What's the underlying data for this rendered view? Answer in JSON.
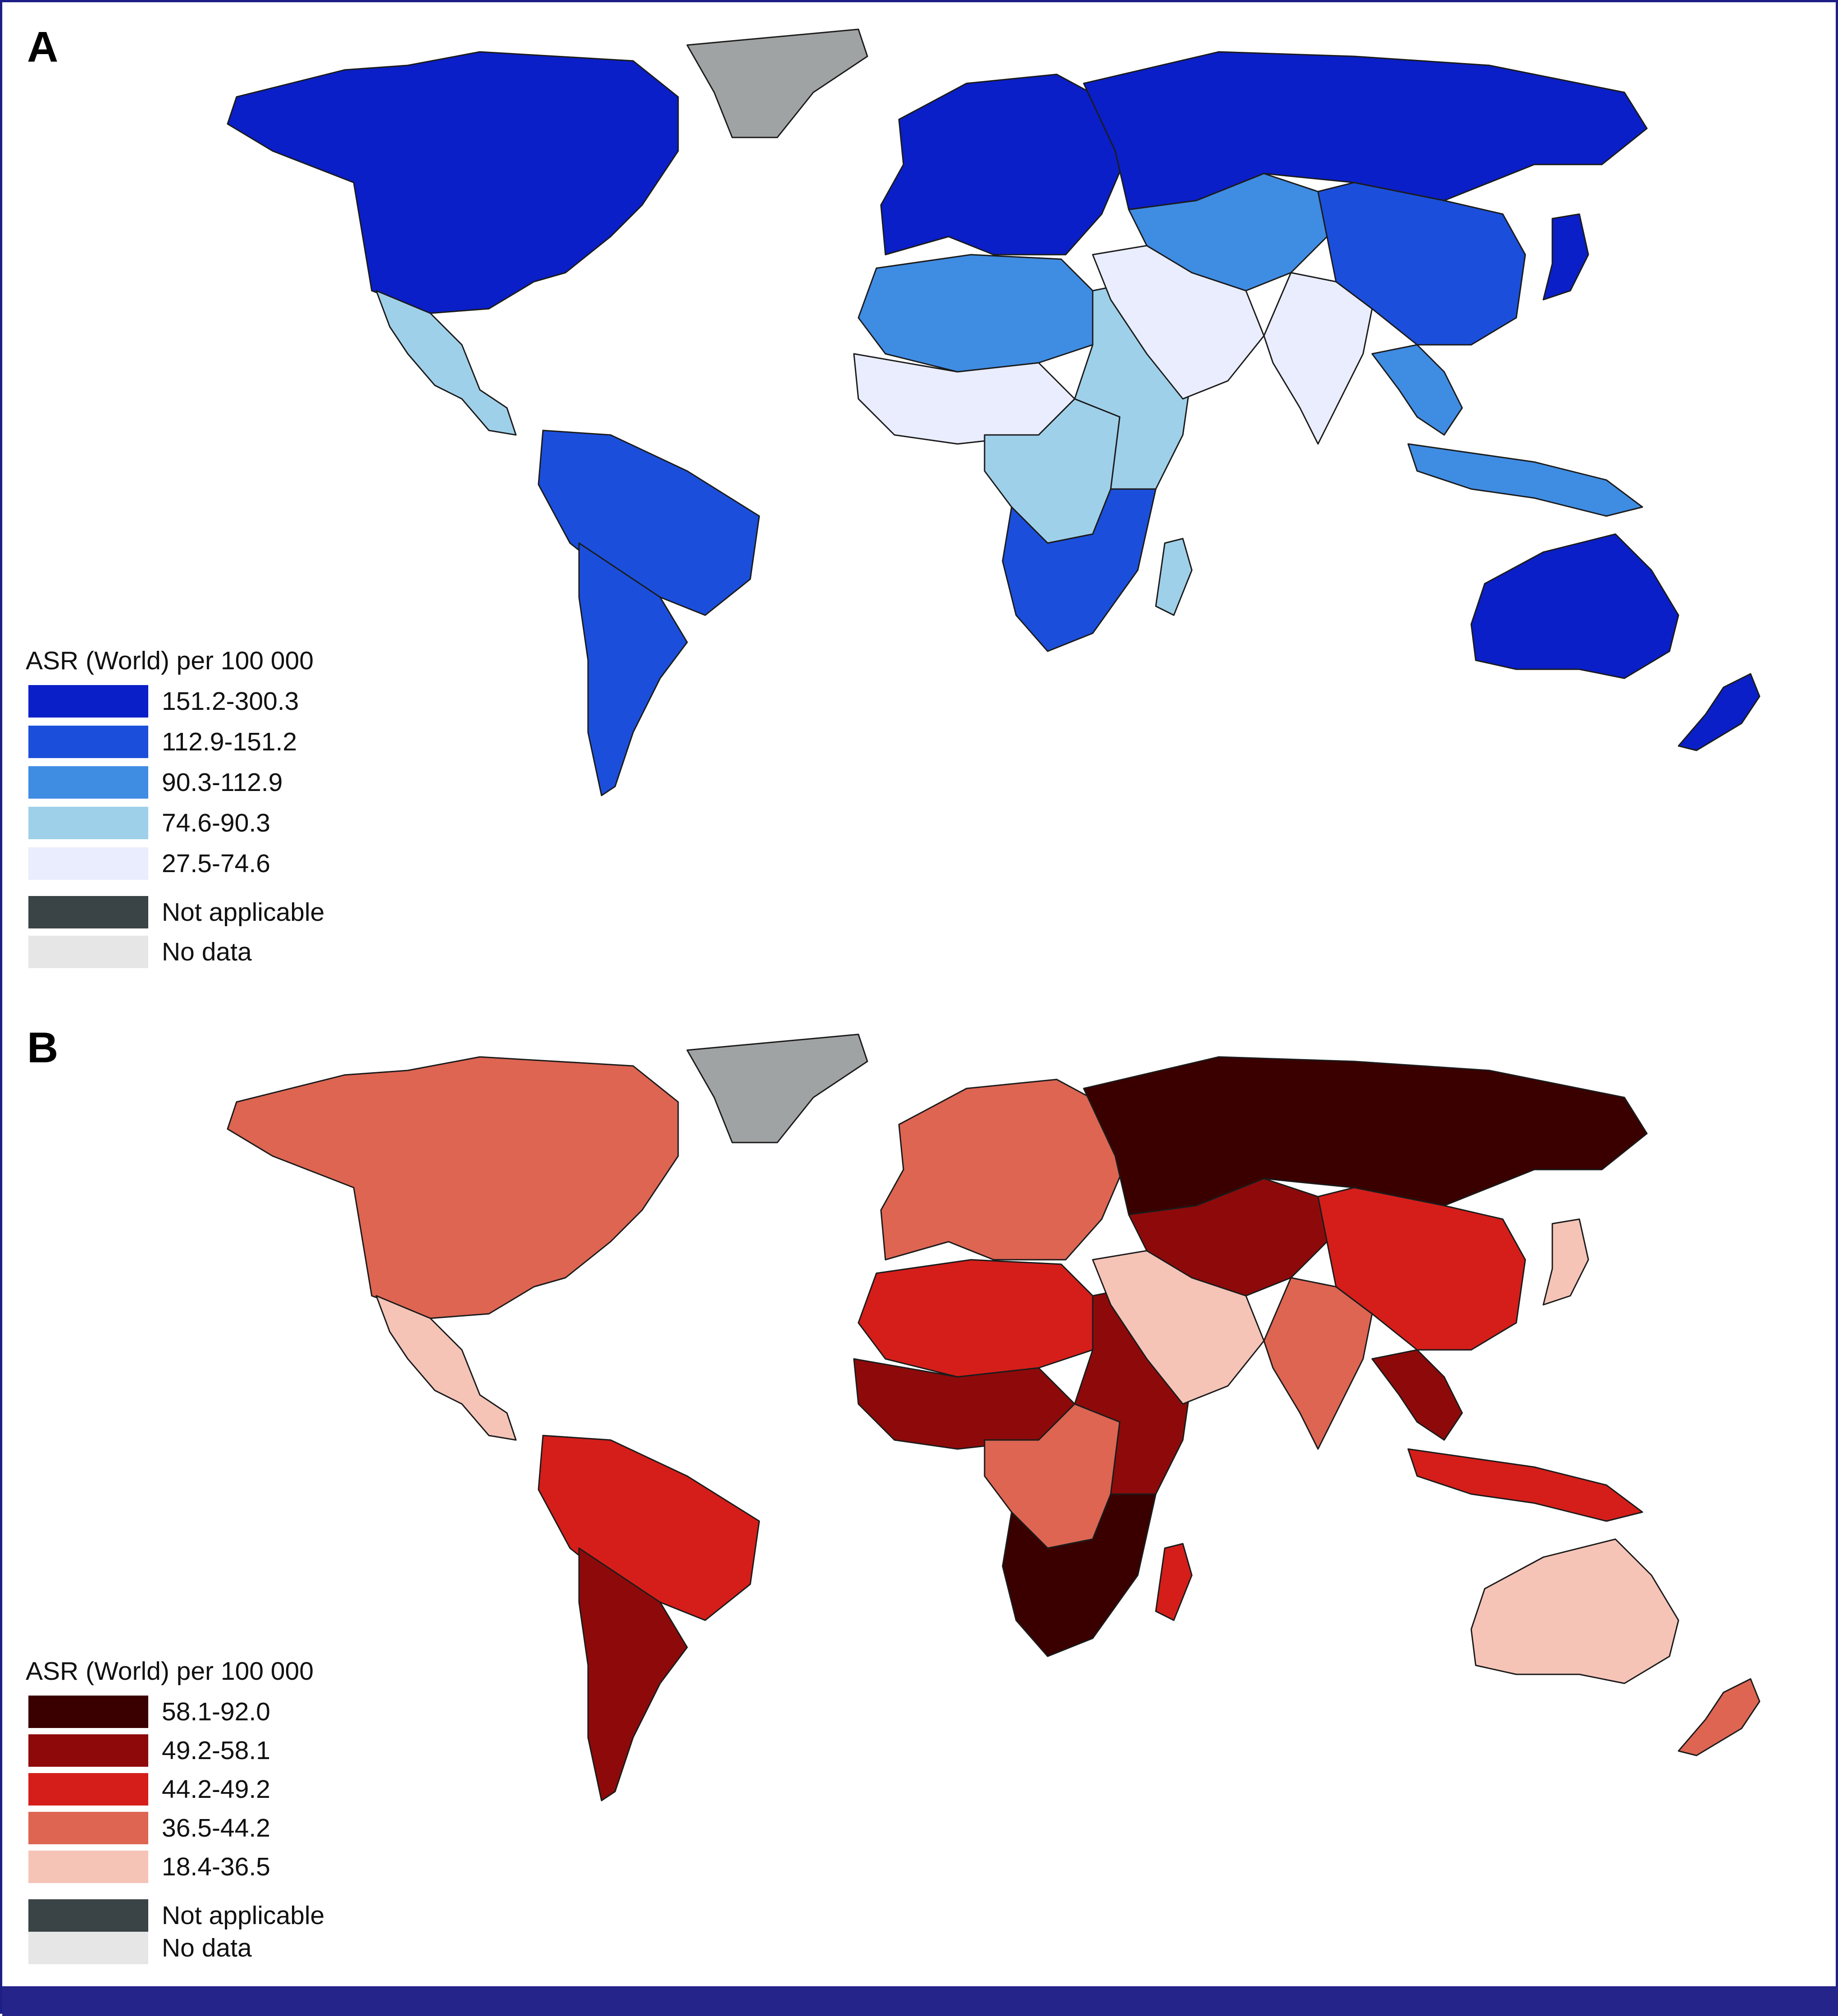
{
  "panels": [
    {
      "label": "A",
      "legend": {
        "title": "ASR (World) per 100 000",
        "bins": [
          {
            "label": "151.2-300.3",
            "color": "#0a1fc8"
          },
          {
            "label": "112.9-151.2",
            "color": "#1b4fdb"
          },
          {
            "label": "90.3-112.9",
            "color": "#3f8ce3"
          },
          {
            "label": "74.6-90.3",
            "color": "#9fd0ea"
          },
          {
            "label": "27.5-74.6",
            "color": "#e9edfd"
          }
        ],
        "not_applicable": {
          "label": "Not applicable",
          "color": "#3a4346"
        },
        "no_data": {
          "label": "No data",
          "color": "#e6e6e6"
        }
      },
      "greenland_color": "#a0a3a3",
      "regions": {
        "north_america": 0,
        "mexico_central": 3,
        "south_america": 1,
        "southern_cone": 1,
        "europe": 0,
        "russia": 0,
        "west_north_africa": 2,
        "sahel_west_africa": 4,
        "central_africa": 3,
        "east_africa": 3,
        "southern_africa": 1,
        "madagascar": 3,
        "middle_east": 4,
        "central_asia": 2,
        "south_asia": 4,
        "china": 1,
        "southeast_asia": 2,
        "indonesia": 2,
        "japan": 0,
        "australia": 0,
        "new_zealand": 0
      }
    },
    {
      "label": "B",
      "legend": {
        "title": "ASR (World) per 100 000",
        "bins": [
          {
            "label": "58.1-92.0",
            "color": "#3a0000"
          },
          {
            "label": "49.2-58.1",
            "color": "#8e0a0a"
          },
          {
            "label": "44.2-49.2",
            "color": "#d51e1a"
          },
          {
            "label": "36.5-44.2",
            "color": "#dd6552"
          },
          {
            "label": "18.4-36.5",
            "color": "#f5c4b7"
          }
        ],
        "not_applicable": {
          "label": "Not applicable",
          "color": "#3a4346"
        },
        "no_data": {
          "label": "No data",
          "color": "#e6e6e6"
        }
      },
      "greenland_color": "#a0a3a3",
      "regions": {
        "north_america": 3,
        "mexico_central": 4,
        "south_america": 2,
        "southern_cone": 1,
        "europe": 3,
        "russia": 0,
        "west_north_africa": 2,
        "sahel_west_africa": 1,
        "central_africa": 3,
        "east_africa": 1,
        "southern_africa": 0,
        "madagascar": 2,
        "middle_east": 4,
        "central_asia": 1,
        "south_asia": 3,
        "china": 2,
        "southeast_asia": 1,
        "indonesia": 2,
        "japan": 4,
        "australia": 4,
        "new_zealand": 3
      }
    }
  ]
}
